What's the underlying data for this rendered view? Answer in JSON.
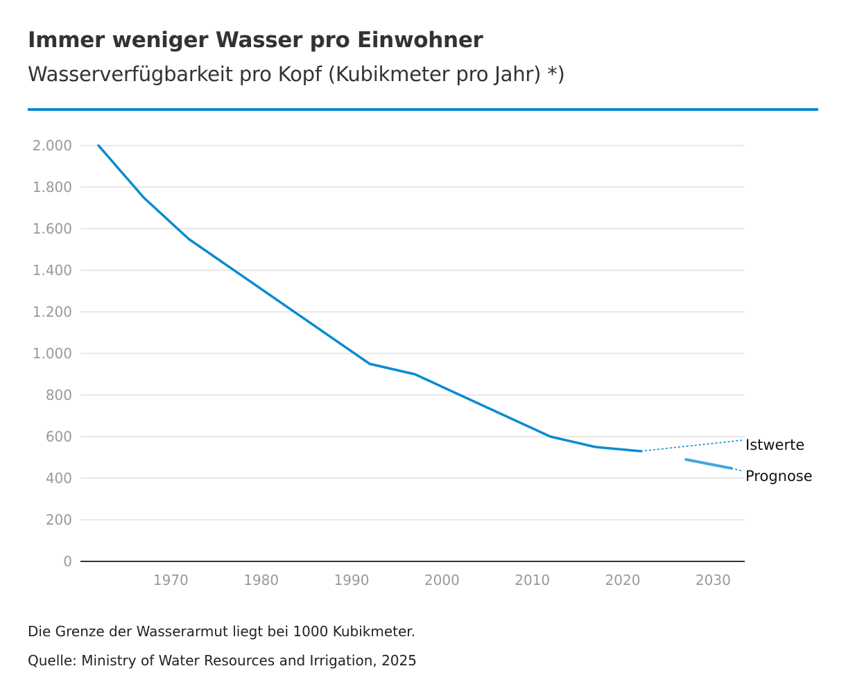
{
  "header": {
    "title": "Immer weniger Wasser pro Einwohner",
    "subtitle": "Wasserverfügbarkeit pro Kopf (Kubikmeter pro Jahr) *)"
  },
  "colors": {
    "accent": "#0a8bd1",
    "forecast": "#43a7df",
    "grid": "#e0e0e0",
    "axis": "#333333",
    "tick_text": "#999999"
  },
  "chart_data": {
    "type": "line",
    "title": "Immer weniger Wasser pro Einwohner",
    "subtitle": "Wasserverfügbarkeit pro Kopf (Kubikmeter pro Jahr) *)",
    "xlabel": "",
    "ylabel": "",
    "xlim": [
      1960,
      2033.5
    ],
    "ylim": [
      0,
      2000
    ],
    "grid": true,
    "legend_position": "right (direct labels)",
    "x_ticks": [
      1970,
      1980,
      1990,
      2000,
      2010,
      2020,
      2030
    ],
    "x_tick_labels": [
      "1970",
      "1980",
      "1990",
      "2000",
      "2010",
      "2020",
      "2030"
    ],
    "y_ticks": [
      0,
      200,
      400,
      600,
      800,
      1000,
      1200,
      1400,
      1600,
      1800,
      2000
    ],
    "y_tick_labels": [
      "0",
      "200",
      "400",
      "600",
      "800",
      "1.000",
      "1.200",
      "1.400",
      "1.600",
      "1.800",
      "2.000"
    ],
    "series": [
      {
        "name": "Istwerte",
        "x": [
          1962,
          1967,
          1972,
          1992,
          1997,
          2012,
          2017,
          2022
        ],
        "y": [
          2000,
          1750,
          1550,
          950,
          900,
          600,
          550,
          530
        ]
      },
      {
        "name": "Prognose",
        "x": [
          2027,
          2032
        ],
        "y": [
          490,
          448
        ]
      }
    ]
  },
  "footer": {
    "note": "Die Grenze der Wasserarmut liegt bei 1000 Kubikmeter.",
    "source": "Quelle: Ministry of Water Resources and Irrigation, 2025"
  }
}
